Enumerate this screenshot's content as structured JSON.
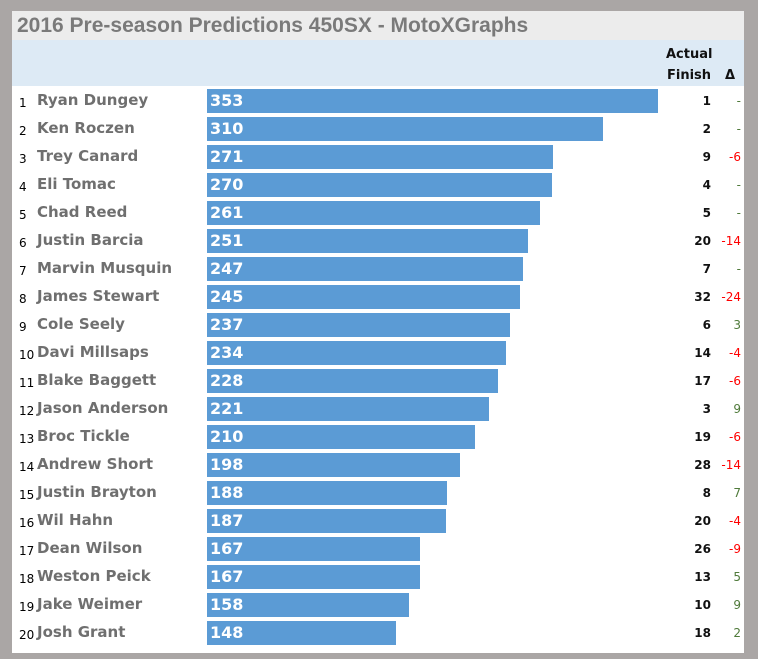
{
  "chart_data": {
    "type": "bar",
    "title": "2016 Pre-season Predictions 450SX - MotoXGraphs",
    "columns": {
      "actual_line1": "Actual",
      "actual_line2": "Finish",
      "delta": "Δ"
    },
    "colors": {
      "bar": "#5b9bd5",
      "negative": "#ff0000",
      "positive": "#4f7a3a",
      "neutral": "#4f7a3a"
    },
    "rows": [
      {
        "rank": "1",
        "name": "Ryan Dungey",
        "value": 353,
        "finish": "1",
        "delta": "-"
      },
      {
        "rank": "2",
        "name": "Ken Roczen",
        "value": 310,
        "finish": "2",
        "delta": "-"
      },
      {
        "rank": "3",
        "name": "Trey Canard",
        "value": 271,
        "finish": "9",
        "delta": "-6"
      },
      {
        "rank": "4",
        "name": "Eli Tomac",
        "value": 270,
        "finish": "4",
        "delta": "-"
      },
      {
        "rank": "5",
        "name": "Chad Reed",
        "value": 261,
        "finish": "5",
        "delta": "-"
      },
      {
        "rank": "6",
        "name": "Justin Barcia",
        "value": 251,
        "finish": "20",
        "delta": "-14"
      },
      {
        "rank": "7",
        "name": "Marvin Musquin",
        "value": 247,
        "finish": "7",
        "delta": "-"
      },
      {
        "rank": "8",
        "name": "James Stewart",
        "value": 245,
        "finish": "32",
        "delta": "-24"
      },
      {
        "rank": "9",
        "name": "Cole Seely",
        "value": 237,
        "finish": "6",
        "delta": "3"
      },
      {
        "rank": "10",
        "name": "Davi Millsaps",
        "value": 234,
        "finish": "14",
        "delta": "-4"
      },
      {
        "rank": "11",
        "name": "Blake Baggett",
        "value": 228,
        "finish": "17",
        "delta": "-6"
      },
      {
        "rank": "12",
        "name": "Jason Anderson",
        "value": 221,
        "finish": "3",
        "delta": "9"
      },
      {
        "rank": "13",
        "name": "Broc Tickle",
        "value": 210,
        "finish": "19",
        "delta": "-6"
      },
      {
        "rank": "14",
        "name": "Andrew Short",
        "value": 198,
        "finish": "28",
        "delta": "-14"
      },
      {
        "rank": "15",
        "name": "Justin Brayton",
        "value": 188,
        "finish": "8",
        "delta": "7"
      },
      {
        "rank": "16",
        "name": "Wil Hahn",
        "value": 187,
        "finish": "20",
        "delta": "-4"
      },
      {
        "rank": "17",
        "name": "Dean Wilson",
        "value": 167,
        "finish": "26",
        "delta": "-9"
      },
      {
        "rank": "18",
        "name": "Weston Peick",
        "value": 167,
        "finish": "13",
        "delta": "5"
      },
      {
        "rank": "19",
        "name": "Jake Weimer",
        "value": 158,
        "finish": "10",
        "delta": "9"
      },
      {
        "rank": "20",
        "name": "Josh Grant",
        "value": 148,
        "finish": "18",
        "delta": "2"
      }
    ],
    "xlim": [
      0,
      353
    ]
  }
}
